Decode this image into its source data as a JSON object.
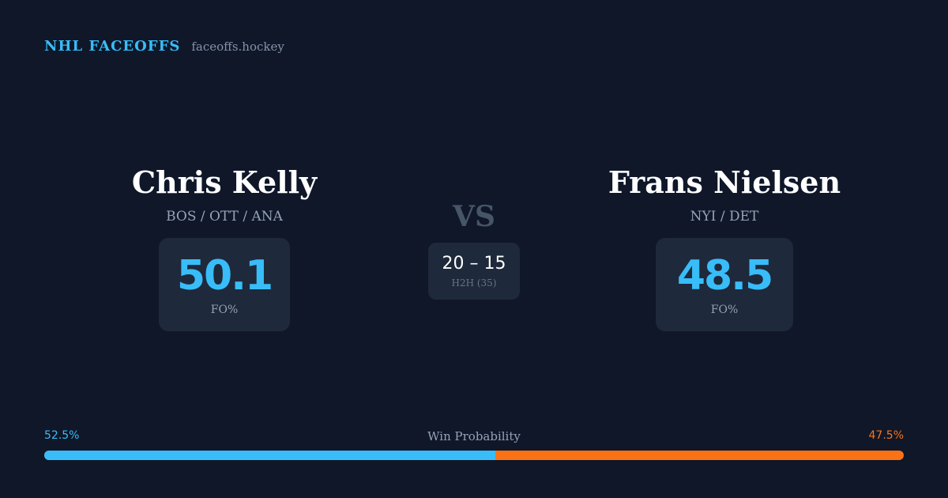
{
  "brand": {
    "name": "NHL FACEOFFS",
    "site": "faceoffs.hockey"
  },
  "player_left": {
    "name": "Chris Kelly",
    "teams": "BOS / OTT / ANA",
    "fo_pct": "50.1",
    "fo_label": "FO%"
  },
  "player_right": {
    "name": "Frans Nielsen",
    "teams": "NYI / DET",
    "fo_pct": "48.5",
    "fo_label": "FO%"
  },
  "matchup": {
    "vs": "VS",
    "h2h_score": "20 – 15",
    "h2h_label": "H2H (35)"
  },
  "win_probability": {
    "title": "Win Probability",
    "left_label": "52.5%",
    "right_label": "47.5%",
    "left_fraction": 0.525,
    "left_color": "#38bdf8",
    "right_color": "#f97316"
  }
}
